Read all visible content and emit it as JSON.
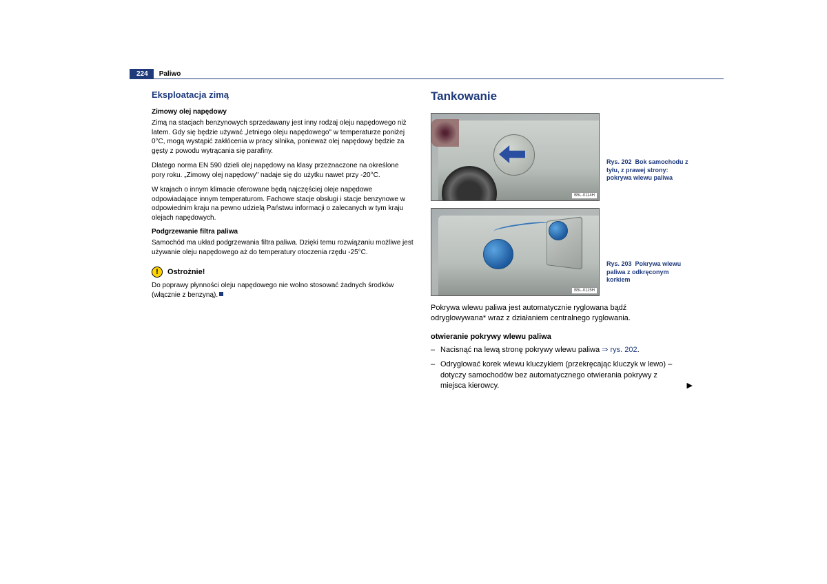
{
  "header": {
    "page_number": "224",
    "section": "Paliwo"
  },
  "left_column": {
    "heading": "Eksploatacja zimą",
    "sub1_title": "Zimowy olej napędowy",
    "sub1_p1": "Zimą na stacjach benzynowych sprzedawany jest inny rodzaj oleju napędowego niż latem. Gdy się będzie używać „letniego oleju napędowego\" w temperaturze poniżej 0°C, mogą wystąpić zakłócenia w pracy silnika, ponieważ olej napędowy będzie za gęsty z powodu wytrącania się parafiny.",
    "sub1_p2": "Dlatego norma EN 590 dzieli olej napędowy na klasy przeznaczone na określone pory roku. „Zimowy olej napędowy\" nadaje się do użytku nawet przy -20°C.",
    "sub1_p3": "W krajach o innym klimacie oferowane będą najczęściej oleje napędowe odpowiadające innym temperaturom. Fachowe stacje obsługi i stacje benzynowe w odpowiednim kraju na pewno udzielą Państwu informacji o zalecanych w tym kraju olejach napędowych.",
    "sub2_title": "Podgrzewanie filtra paliwa",
    "sub2_p1": "Samochód ma układ podgrzewania filtra paliwa. Dzięki temu rozwiązaniu możliwe jest używanie oleju napędowego aż do temperatury otoczenia rzędu -25°C.",
    "caution_label": "Ostrożnie!",
    "caution_text": "Do poprawy płynności oleju napędowego nie wolno stosować żadnych środków (włącznie z benzyną)."
  },
  "right_column": {
    "heading": "Tankowanie",
    "fig1_badge": "B5L-0114H",
    "fig1_caption_label": "Rys. 202",
    "fig1_caption_text": "Bok samochodu z tyłu, z prawej strony: pokrywa wlewu paliwa",
    "fig2_badge": "B5L-0115H",
    "fig2_caption_label": "Rys. 203",
    "fig2_caption_text": "Pokrywa wlewu paliwa z odkręconym korkiem",
    "intro": "Pokrywa wlewu paliwa jest automatycznie ryglowana bądź odryglowywana* wraz z działaniem centralnego ryglowania.",
    "sub_heading": "otwieranie pokrywy wlewu paliwa",
    "list1_pre": "Nacisnąć na lewą stronę pokrywy wlewu paliwa ",
    "list1_ref": "rys. 202",
    "list2": "Odryglować korek wlewu kluczykiem (przekręcając kluczyk w lewo) – dotyczy samochodów bez automatycznego otwierania pokrywy z miejsca kierowcy."
  },
  "colors": {
    "heading_blue": "#1e3a7b",
    "caution_yellow": "#ffd400"
  }
}
